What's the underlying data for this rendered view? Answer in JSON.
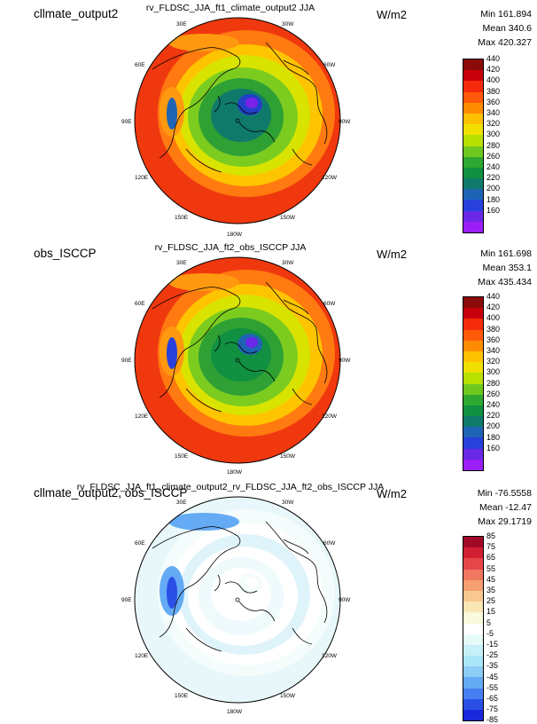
{
  "panels": [
    {
      "case_name": "cllmate_output2",
      "units": "W/m2",
      "title": "rv_FLDSC_JJA_ft1_climate_output2  JJA",
      "stats": {
        "min": "Min 161.894",
        "mean": "Mean 340.6",
        "max": "Max 420.327"
      },
      "colorbar": {
        "labels": [
          "440",
          "420",
          "400",
          "380",
          "360",
          "340",
          "320",
          "300",
          "280",
          "260",
          "240",
          "220",
          "200",
          "180",
          "160"
        ],
        "colors": [
          "#8b0a0a",
          "#c8000b",
          "#f52a0c",
          "#ff5a0a",
          "#ff8c00",
          "#ffc000",
          "#f0e000",
          "#b8e000",
          "#6ec820",
          "#2ea830",
          "#109040",
          "#0f7a6a",
          "#1e64b4",
          "#2840dc",
          "#6a28e6",
          "#9a1ef5"
        ]
      },
      "map_colors": {
        "outer": "#f0380e",
        "ring1": "#ff7a10",
        "ring2": "#ffc400",
        "ring3": "#d8e400",
        "ring4": "#7ccc20",
        "ring5": "#2ea034",
        "core": "#0f7a6a",
        "pole": "#2340c8",
        "poleCore": "#7a22e8",
        "anom1": "#ff9a10",
        "anom2": "#1e64b4"
      }
    },
    {
      "case_name": "obs_ISCCP",
      "units": "W/m2",
      "title": "rv_FLDSC_JJA_ft2_obs_ISCCP  JJA",
      "stats": {
        "min": "Min 161.698",
        "mean": "Mean 353.1",
        "max": "Max 435.434"
      },
      "colorbar": {
        "labels": [
          "440",
          "420",
          "400",
          "380",
          "360",
          "340",
          "320",
          "300",
          "280",
          "260",
          "240",
          "220",
          "200",
          "180",
          "160"
        ],
        "colors": [
          "#8b0a0a",
          "#c8000b",
          "#f52a0c",
          "#ff5a0a",
          "#ff8c00",
          "#ffc000",
          "#f0e000",
          "#b8e000",
          "#6ec820",
          "#2ea830",
          "#109040",
          "#0f7a6a",
          "#1e64b4",
          "#2840dc",
          "#6a28e6",
          "#9a1ef5"
        ]
      },
      "map_colors": {
        "outer": "#f0380e",
        "ring1": "#ff7a10",
        "ring2": "#ffc400",
        "ring3": "#d8e400",
        "ring4": "#7ccc20",
        "ring5": "#2ea034",
        "core": "#109040",
        "pole": "#1e64b4",
        "poleCore": "#6a28e6",
        "anom1": "#ff9a10",
        "anom2": "#2840dc"
      }
    },
    {
      "case_name": "cllmate_output2, obs_ISCCP",
      "units": "W/m2",
      "title": "rv_FLDSC_JJA_ft1_climate_output2_rv_FLDSC_JJA_ft2_obs_ISCCP  JJA",
      "stats": {
        "min": "Min -76.5558",
        "mean": "Mean -12.47",
        "max": "Max 29.1719"
      },
      "colorbar": {
        "labels": [
          "85",
          "75",
          "65",
          "55",
          "45",
          "35",
          "25",
          "15",
          "5",
          "-5",
          "-15",
          "-25",
          "-35",
          "-45",
          "-55",
          "-65",
          "-75",
          "-85"
        ],
        "colors": [
          "#a00a28",
          "#d21e32",
          "#e6464a",
          "#f07860",
          "#f6a070",
          "#f8c890",
          "#fae6b4",
          "#fafadc",
          "#ffffff",
          "#e6fafa",
          "#c8f0f8",
          "#aae6f8",
          "#8ccdf6",
          "#64aaf4",
          "#4680f0",
          "#2a50e6",
          "#1a28dc"
        ]
      },
      "map_colors": {
        "outer": "#e8f8fa",
        "ring1": "#f4fcfc",
        "ring2": "#ffffff",
        "ring3": "#dff4fa",
        "ring4": "#ffffff",
        "ring5": "#eefafc",
        "core": "#ffffff",
        "pole": "#f4fcfc",
        "poleCore": "#ffffff",
        "anom1": "#64aaf4",
        "anom2": "#2a50e6"
      }
    }
  ],
  "longitude_labels": {
    "lon30e": "30E",
    "lon30w": "30W",
    "lon60e": "60E",
    "lon60w": "60W",
    "lon90e": "90E",
    "lon90w": "90W",
    "lon120e": "120E",
    "lon120w": "120W",
    "lon150e": "150E",
    "lon150w": "150W",
    "lon180w": "180W"
  }
}
